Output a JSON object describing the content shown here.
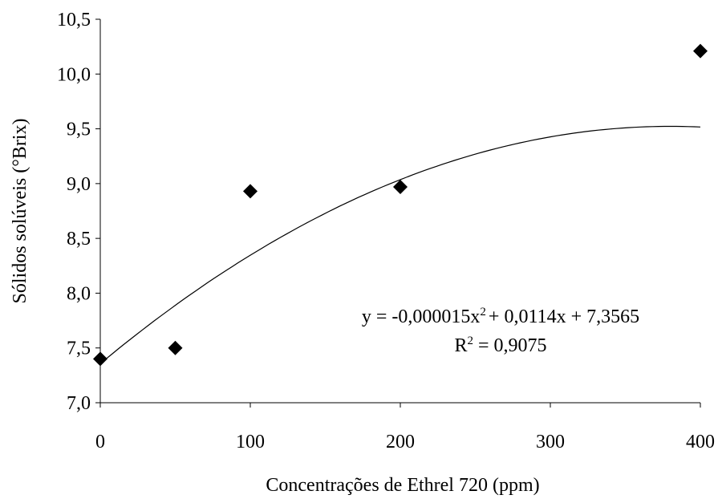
{
  "chart_data": {
    "type": "scatter",
    "xlabel": "Concentrações de Ethrel 720 (ppm)",
    "ylabel": "Sólidos solúveis (°Brix)",
    "xlim": [
      0,
      400
    ],
    "ylim": [
      7.0,
      10.5
    ],
    "x_ticks": [
      "0",
      "100",
      "200",
      "300",
      "400"
    ],
    "x_tick_values": [
      0,
      100,
      200,
      300,
      400
    ],
    "y_ticks": [
      "7,0",
      "7,5",
      "8,0",
      "8,5",
      "9,0",
      "9,5",
      "10,0",
      "10,5"
    ],
    "y_tick_values": [
      7.0,
      7.5,
      8.0,
      8.5,
      9.0,
      9.5,
      10.0,
      10.5
    ],
    "grid": false,
    "marker": "diamond",
    "marker_color": "#000000",
    "line_color": "#000000",
    "series": [
      {
        "x": [
          0,
          50,
          100,
          200,
          400
        ],
        "y": [
          7.4,
          7.5,
          8.93,
          8.97,
          10.21
        ]
      }
    ],
    "trendline": {
      "type": "polynomial",
      "coefficients": {
        "a": -1.5e-05,
        "b": 0.0114,
        "c": 7.3565
      },
      "equation_parts": [
        "y = -0,000015x",
        "2",
        "+ 0,0114x + 7,3565"
      ],
      "r2_parts": [
        "R",
        "2",
        " = 0,9075"
      ]
    }
  }
}
